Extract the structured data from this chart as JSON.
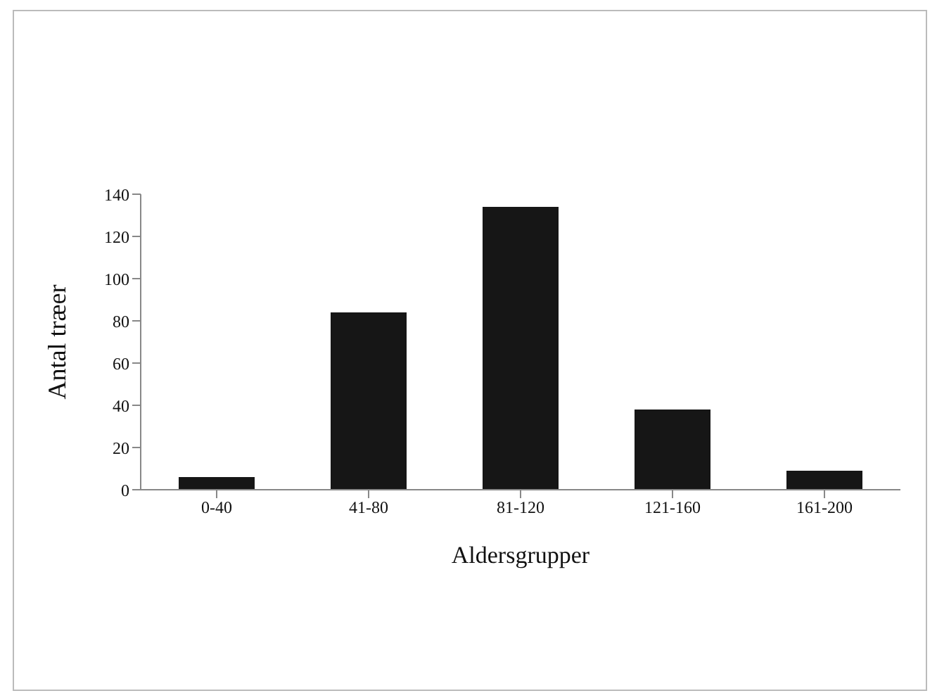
{
  "chart_data": {
    "type": "bar",
    "xlabel": "Aldersgrupper",
    "ylabel": "Antal træer",
    "categories": [
      "0-40",
      "41-80",
      "81-120",
      "121-160",
      "161-200"
    ],
    "values": [
      6,
      84,
      134,
      38,
      9
    ],
    "color": "#161616",
    "ylim": [
      0,
      140
    ],
    "yticks": [
      0,
      20,
      40,
      60,
      80,
      100,
      120,
      140
    ],
    "grid": false
  }
}
